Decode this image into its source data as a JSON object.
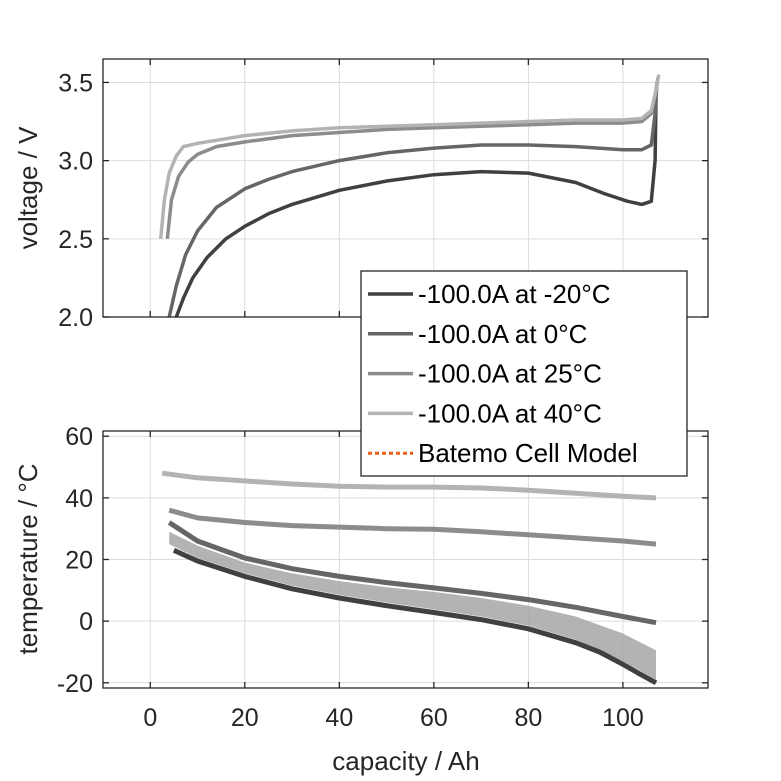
{
  "chart_data": [
    {
      "type": "line",
      "panel": "top",
      "title": "",
      "xlabel": "",
      "ylabel": "voltage / V",
      "xlim": [
        -10,
        118
      ],
      "ylim": [
        2.0,
        3.65
      ],
      "xticks": [
        0,
        20,
        40,
        60,
        80,
        100
      ],
      "yticks": [
        2.0,
        2.5,
        3.0,
        3.5
      ],
      "ytick_labels": [
        "2.0",
        "2.5",
        "3.0",
        "3.5"
      ],
      "grid": true,
      "series": [
        {
          "name": "-100.0A at -20°C",
          "color": "#404040",
          "x": [
            5.5,
            7,
            9,
            12,
            16,
            20,
            25,
            30,
            40,
            50,
            60,
            70,
            80,
            90,
            96,
            101,
            104,
            106,
            106.8,
            107
          ],
          "y": [
            2.0,
            2.12,
            2.25,
            2.38,
            2.5,
            2.58,
            2.66,
            2.72,
            2.81,
            2.87,
            2.91,
            2.93,
            2.92,
            2.86,
            2.79,
            2.74,
            2.72,
            2.74,
            3.0,
            3.4
          ]
        },
        {
          "name": "-100.0A at 0°C",
          "color": "#666666",
          "x": [
            4,
            5.5,
            7.5,
            10,
            14,
            20,
            25,
            30,
            40,
            50,
            60,
            70,
            80,
            90,
            100,
            104,
            106,
            106.8,
            107.2
          ],
          "y": [
            2.0,
            2.2,
            2.4,
            2.55,
            2.7,
            2.82,
            2.88,
            2.93,
            3.0,
            3.05,
            3.08,
            3.1,
            3.1,
            3.09,
            3.07,
            3.07,
            3.1,
            3.3,
            3.5
          ]
        },
        {
          "name": "-100.0A at 25°C",
          "color": "#8c8c8c",
          "x": [
            3.6,
            4.5,
            6,
            8,
            10,
            14,
            20,
            30,
            40,
            50,
            60,
            70,
            80,
            90,
            100,
            104,
            106,
            107,
            107.4
          ],
          "y": [
            2.5,
            2.75,
            2.9,
            2.99,
            3.04,
            3.09,
            3.12,
            3.16,
            3.18,
            3.2,
            3.21,
            3.22,
            3.23,
            3.24,
            3.24,
            3.25,
            3.3,
            3.45,
            3.53
          ]
        },
        {
          "name": "-100.0A at 40°C",
          "color": "#b3b3b3",
          "x": [
            2.2,
            3,
            4,
            5.5,
            7,
            10,
            14,
            20,
            30,
            40,
            50,
            60,
            70,
            80,
            90,
            100,
            104,
            106,
            107,
            107.6
          ],
          "y": [
            2.5,
            2.75,
            2.92,
            3.03,
            3.09,
            3.11,
            3.13,
            3.16,
            3.19,
            3.21,
            3.22,
            3.23,
            3.24,
            3.25,
            3.26,
            3.26,
            3.27,
            3.32,
            3.45,
            3.55
          ]
        }
      ]
    },
    {
      "type": "line",
      "panel": "bottom",
      "title": "",
      "xlabel": "capacity / Ah",
      "ylabel": "temperature / °C",
      "xlim": [
        -10,
        118
      ],
      "ylim": [
        -21.7,
        61.7
      ],
      "xticks": [
        0,
        20,
        40,
        60,
        80,
        100
      ],
      "xtick_labels": [
        "0",
        "20",
        "40",
        "60",
        "80",
        "100"
      ],
      "yticks": [
        -20,
        0,
        20,
        40,
        60
      ],
      "ytick_labels": [
        "-20",
        "0",
        "20",
        "40",
        "60"
      ],
      "grid": true,
      "series": [
        {
          "name": "-100.0A at -20°C",
          "color": "#404040",
          "x": [
            5,
            10,
            20,
            30,
            40,
            50,
            60,
            70,
            80,
            90,
            95,
            100,
            104,
            107
          ],
          "y": [
            23,
            19.5,
            14.5,
            10.5,
            7.5,
            5,
            2.8,
            0.5,
            -2.5,
            -7,
            -10,
            -14,
            -17.5,
            -20
          ]
        },
        {
          "name": "-100.0A at 0°C",
          "color": "#666666",
          "x": [
            4,
            10,
            20,
            30,
            40,
            50,
            60,
            70,
            80,
            90,
            100,
            107
          ],
          "y": [
            32,
            26,
            20.5,
            17,
            14.5,
            12.5,
            10.8,
            9,
            7,
            4.5,
            1.5,
            -0.5
          ]
        },
        {
          "name": "-100.0A at 25°C",
          "color": "#8c8c8c",
          "x": [
            4,
            10,
            20,
            30,
            40,
            50,
            60,
            70,
            80,
            90,
            100,
            107
          ],
          "y": [
            36,
            33.5,
            32,
            31,
            30.5,
            30,
            29.8,
            29,
            28,
            27,
            26,
            25
          ]
        },
        {
          "name": "-100.0A at 40°C",
          "color": "#b3b3b3",
          "x": [
            2.5,
            10,
            20,
            30,
            40,
            50,
            60,
            70,
            80,
            90,
            100,
            107
          ],
          "y": [
            48,
            46.5,
            45.5,
            44.5,
            43.8,
            43.5,
            43.5,
            43.2,
            42.5,
            41.5,
            40.5,
            40
          ]
        }
      ],
      "band": {
        "name": "Batemo Cell Model range (-20°C to 0°C)",
        "color": "#a6a6a6",
        "x": [
          4,
          10,
          20,
          30,
          40,
          50,
          60,
          70,
          80,
          90,
          100,
          107
        ],
        "upper": [
          29,
          24.5,
          19,
          15.5,
          13,
          11,
          9.5,
          7.5,
          5,
          1.5,
          -4,
          -9.5
        ],
        "lower": [
          25,
          20.5,
          15.5,
          11.5,
          8.5,
          6,
          3.8,
          1.5,
          -1.5,
          -6,
          -13,
          -19
        ]
      }
    }
  ],
  "legend": {
    "placement": "center-right",
    "entries": [
      {
        "label": "-100.0A at -20°C",
        "color": "#404040",
        "style": "solid"
      },
      {
        "label": "-100.0A at 0°C",
        "color": "#666666",
        "style": "solid"
      },
      {
        "label": "-100.0A at 25°C",
        "color": "#8c8c8c",
        "style": "solid"
      },
      {
        "label": "-100.0A at 40°C",
        "color": "#b3b3b3",
        "style": "solid"
      },
      {
        "label": "Batemo Cell Model",
        "color": "#e8601c",
        "style": "dotted"
      }
    ]
  }
}
